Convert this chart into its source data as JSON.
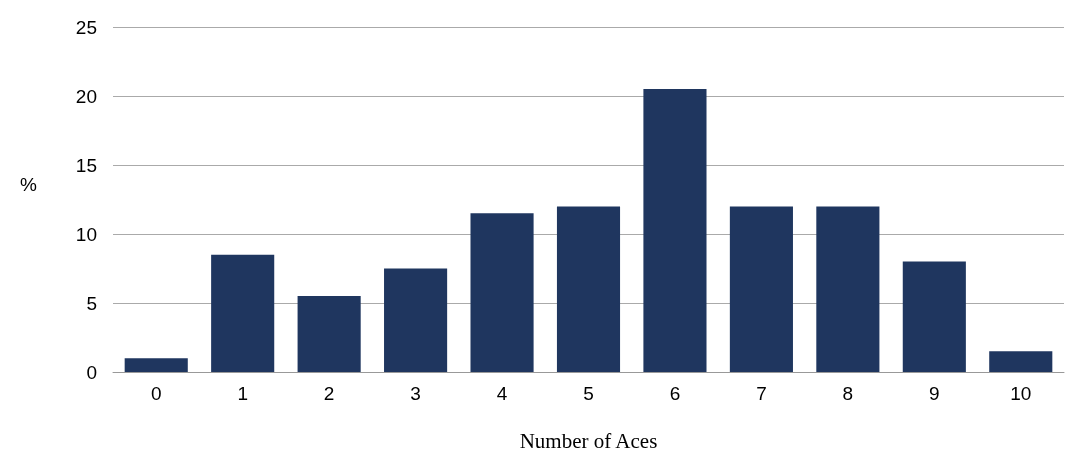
{
  "chart_data": {
    "type": "bar",
    "xlabel": "Number of Aces",
    "ylabel": "%",
    "categories": [
      "0",
      "1",
      "2",
      "3",
      "4",
      "5",
      "6",
      "7",
      "8",
      "9",
      "10"
    ],
    "values": [
      1,
      8.5,
      5.5,
      7.5,
      11.5,
      12,
      20.5,
      12,
      12,
      8,
      1.5
    ],
    "color": "#1f365f",
    "ylim": [
      0,
      25
    ],
    "yticks": [
      0,
      5,
      10,
      15,
      20,
      25
    ],
    "grid": "y"
  }
}
